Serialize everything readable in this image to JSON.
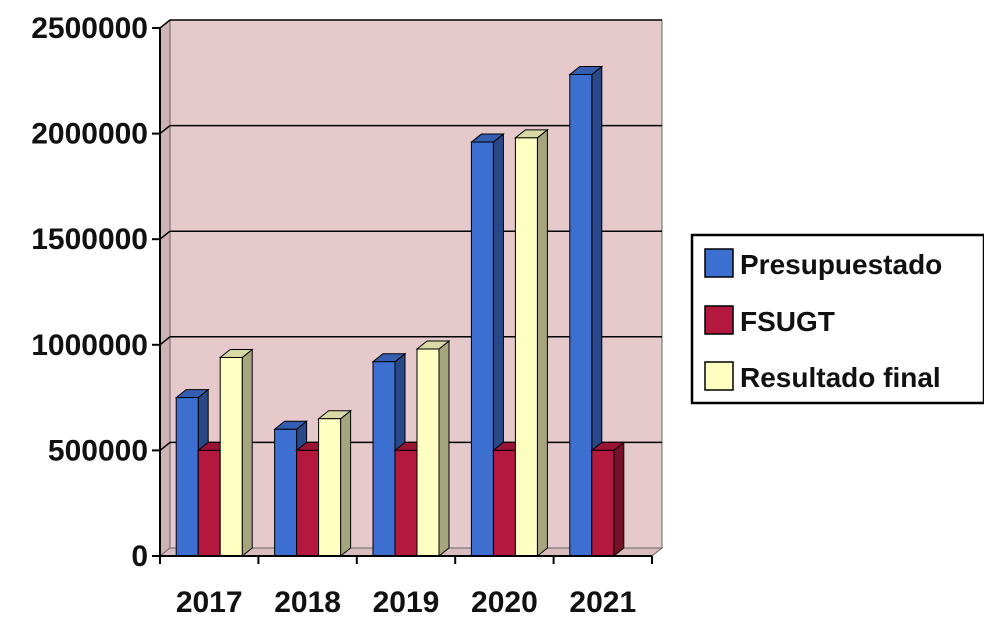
{
  "chart_data": {
    "type": "bar",
    "categories": [
      "2017",
      "2018",
      "2019",
      "2020",
      "2021"
    ],
    "series": [
      {
        "name": "Presupuestado",
        "color": "#3D6FD0",
        "values": [
          750000,
          600000,
          920000,
          1960000,
          2280000
        ]
      },
      {
        "name": "FSUGT",
        "color": "#B5183F",
        "values": [
          500000,
          500000,
          500000,
          500000,
          500000
        ]
      },
      {
        "name": "Resultado final",
        "color": "#FFFFC2",
        "values": [
          940000,
          650000,
          980000,
          1980000,
          null
        ]
      }
    ],
    "ylim": [
      0,
      2500000
    ],
    "yticks": [
      0,
      500000,
      1000000,
      1500000,
      2000000,
      2500000
    ],
    "ytick_labels": [
      "0",
      "500000",
      "1000000",
      "1500000",
      "2000000",
      "2500000"
    ],
    "grid": true,
    "legend_position": "right",
    "plot_background": "#E6C9CB",
    "title": "",
    "xlabel": "",
    "ylabel": ""
  }
}
